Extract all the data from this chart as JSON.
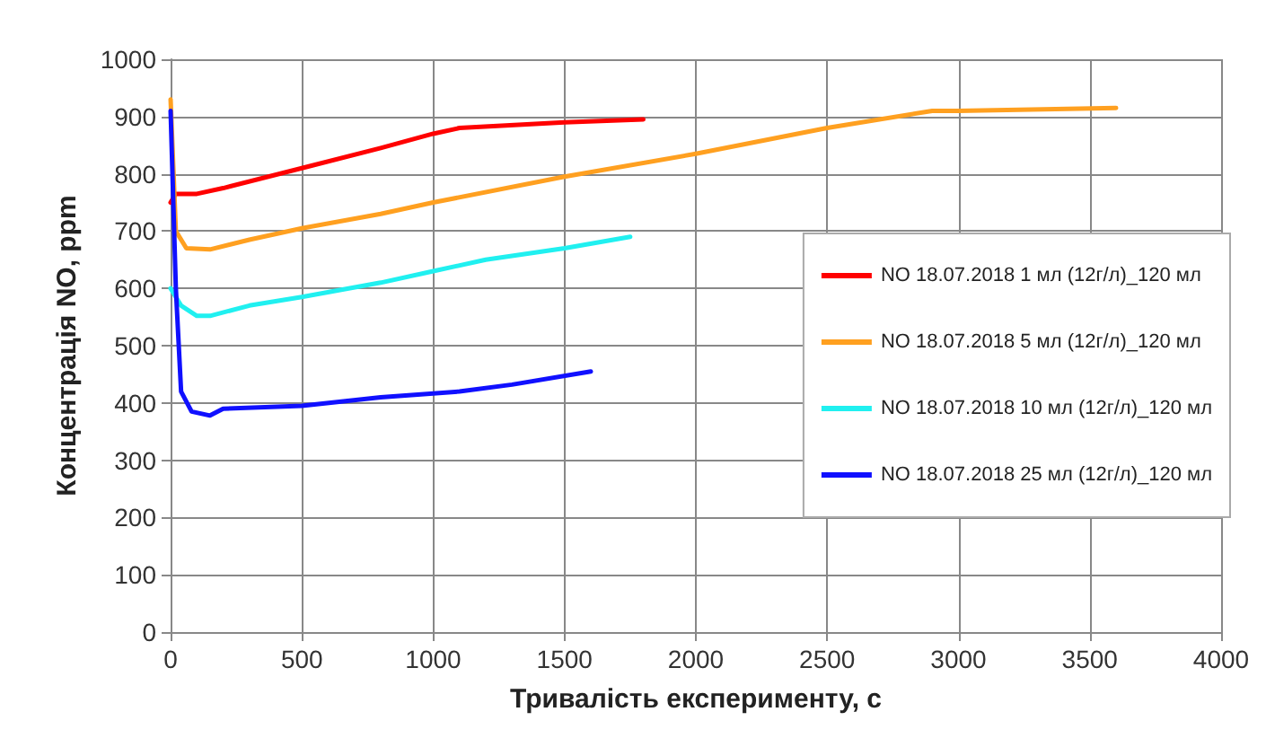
{
  "chart_data": {
    "type": "line",
    "xlabel": "Тривалість експерименту, с",
    "ylabel": "Концентрація NO, ppm",
    "xlim": [
      0,
      4000
    ],
    "xticks": [
      0,
      500,
      1000,
      1500,
      2000,
      2500,
      3000,
      3500,
      4000
    ],
    "ylim": [
      0,
      1000
    ],
    "yticks": [
      0,
      100,
      200,
      300,
      400,
      500,
      600,
      700,
      800,
      900,
      1000
    ],
    "grid": true,
    "legend": "right",
    "marker": "none",
    "line_style": "solid",
    "series": [
      {
        "name": "NO 18.07.2018 1 мл (12г/л)_120 мл",
        "color": "#ff0000",
        "x": [
          0,
          20,
          100,
          200,
          500,
          800,
          1000,
          1100,
          1500,
          1800
        ],
        "values": [
          750,
          765,
          765,
          775,
          810,
          845,
          870,
          880,
          890,
          895
        ]
      },
      {
        "name": "NO 18.07.2018 5 мл (12г/л)_120 мл",
        "color": "#ffa020",
        "x": [
          0,
          20,
          60,
          150,
          300,
          500,
          800,
          1000,
          1500,
          2000,
          2500,
          2900,
          3000,
          3600
        ],
        "values": [
          930,
          700,
          670,
          668,
          685,
          705,
          730,
          750,
          795,
          835,
          880,
          910,
          910,
          915
        ]
      },
      {
        "name": "NO 18.07.2018 10 мл (12г/л)_120 мл",
        "color": "#20f0f0",
        "x": [
          0,
          40,
          100,
          150,
          300,
          500,
          800,
          1000,
          1200,
          1500,
          1750
        ],
        "values": [
          600,
          570,
          552,
          552,
          570,
          585,
          610,
          630,
          650,
          670,
          690
        ]
      },
      {
        "name": "NO 18.07.2018 25 мл (12г/л)_120 мл",
        "color": "#1010ff",
        "x": [
          0,
          20,
          40,
          80,
          150,
          200,
          500,
          800,
          1100,
          1300,
          1600
        ],
        "values": [
          910,
          600,
          420,
          385,
          378,
          390,
          395,
          410,
          420,
          432,
          455
        ]
      }
    ]
  }
}
